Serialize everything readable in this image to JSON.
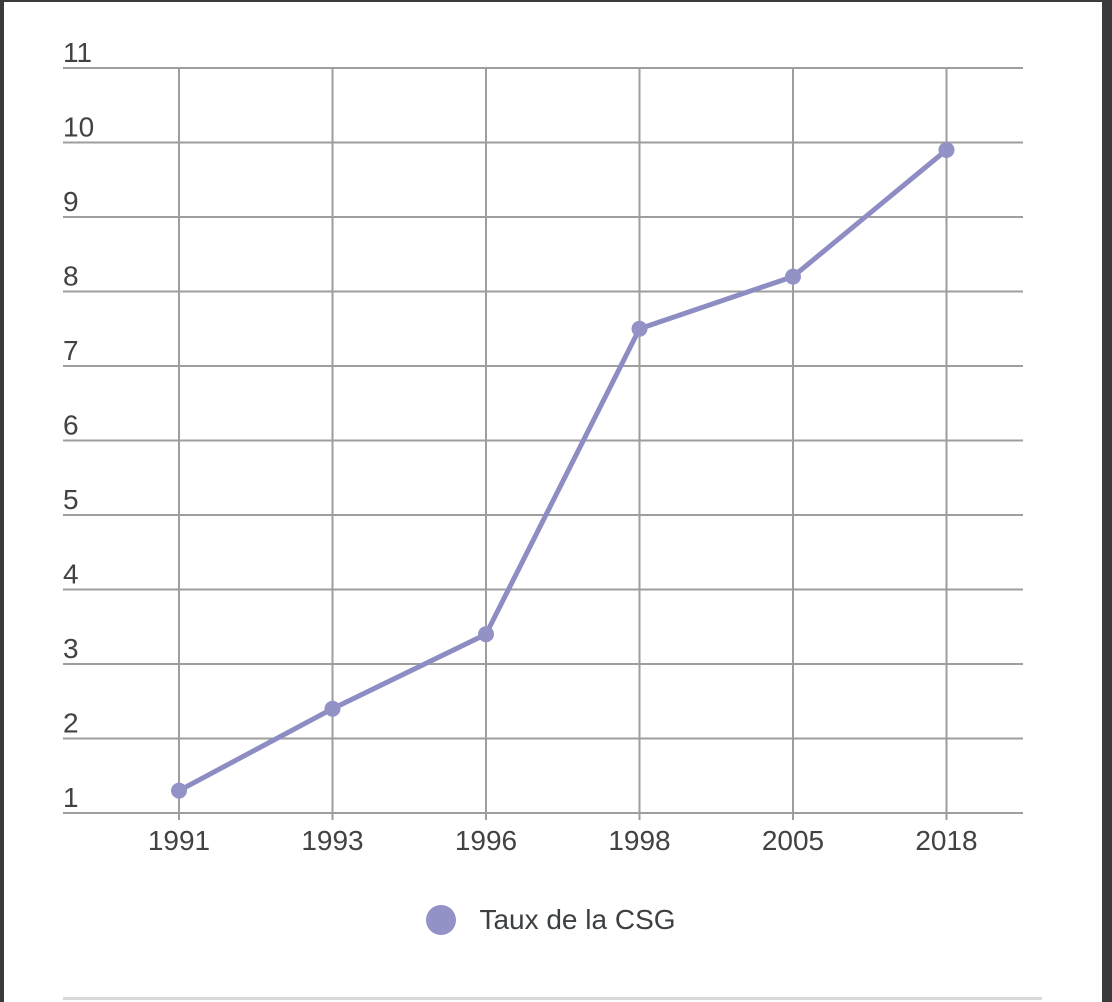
{
  "page": {
    "background": "#ffffff",
    "frame_color": "#3a3a3a",
    "divider_color": "#d9d9d9"
  },
  "chart_data": {
    "type": "line",
    "title": "",
    "xlabel": "",
    "ylabel": "",
    "categories": [
      "1991",
      "1993",
      "1996",
      "1998",
      "2005",
      "2018"
    ],
    "series": [
      {
        "name": "Taux de la CSG",
        "color": "#8d8dc4",
        "marker_color": "#9292c7",
        "values": [
          1.3,
          2.4,
          3.4,
          7.5,
          8.2,
          9.9
        ]
      }
    ],
    "ylim": [
      1,
      11
    ],
    "yticks": [
      1,
      2,
      3,
      4,
      5,
      6,
      7,
      8,
      9,
      10,
      11
    ],
    "grid": true,
    "gridline_color": "#9e9e9e",
    "axis_label_color": "#424242",
    "legend_position": "bottom"
  },
  "legend": {
    "label": "Taux de la CSG",
    "marker_color": "#9292c7",
    "text_color": "#3c4043"
  }
}
